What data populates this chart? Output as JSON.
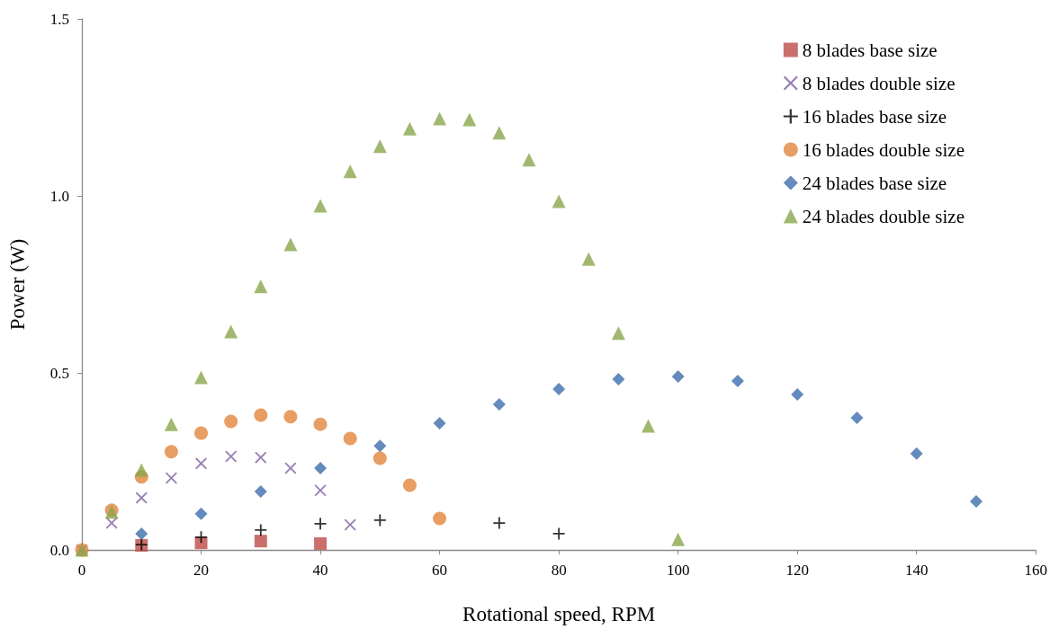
{
  "chart_data": {
    "type": "scatter",
    "xlabel": "Rotational speed, RPM",
    "ylabel": "Power (W)",
    "xlim": [
      0,
      160
    ],
    "xticks": [
      0,
      20,
      40,
      60,
      80,
      100,
      120,
      140,
      160
    ],
    "ylim": [
      0,
      1.5
    ],
    "yticks": [
      {
        "value": 0,
        "label": "0.0"
      },
      {
        "value": 0.5,
        "label": "0.5"
      },
      {
        "value": 1,
        "label": "1.0"
      },
      {
        "value": 1.5,
        "label": "1.5"
      }
    ],
    "legend": "top right",
    "grid": false,
    "series": [
      {
        "name": "8 blades base size",
        "color": "#be4b48",
        "marker": "square",
        "x": [
          10,
          20,
          30,
          40
        ],
        "values": [
          0.013,
          0.02,
          0.025,
          0.018
        ]
      },
      {
        "name": "8 blades double size",
        "color": "#7d60a0",
        "marker": "x",
        "x": [
          0,
          5,
          10,
          15,
          20,
          25,
          30,
          35,
          40,
          45
        ],
        "values": [
          0,
          0.076,
          0.147,
          0.203,
          0.244,
          0.264,
          0.261,
          0.231,
          0.168,
          0.071
        ]
      },
      {
        "name": "16 blades base size",
        "color": "#000000",
        "marker": "cross",
        "x": [
          10,
          20,
          30,
          40,
          50,
          70,
          80
        ],
        "values": [
          0.015,
          0.036,
          0.056,
          0.074,
          0.084,
          0.076,
          0.046
        ]
      },
      {
        "name": "16 blades double size",
        "color": "#e2843c",
        "marker": "circle",
        "x": [
          0,
          5,
          10,
          15,
          20,
          25,
          30,
          35,
          40,
          45,
          50,
          55,
          60
        ],
        "values": [
          0,
          0.112,
          0.206,
          0.277,
          0.33,
          0.363,
          0.381,
          0.376,
          0.355,
          0.315,
          0.259,
          0.183,
          0.089
        ]
      },
      {
        "name": "24 blades base size",
        "color": "#3d6eab",
        "marker": "diamond",
        "x": [
          10,
          20,
          30,
          40,
          50,
          60,
          70,
          80,
          90,
          100,
          110,
          120,
          130,
          140,
          150
        ],
        "values": [
          0.046,
          0.102,
          0.165,
          0.231,
          0.294,
          0.358,
          0.411,
          0.454,
          0.482,
          0.49,
          0.477,
          0.439,
          0.373,
          0.272,
          0.137
        ]
      },
      {
        "name": "24 blades double size",
        "color": "#8aa64c",
        "marker": "triangle",
        "x": [
          0,
          5,
          10,
          15,
          20,
          25,
          30,
          35,
          40,
          45,
          50,
          55,
          60,
          65,
          70,
          75,
          80,
          85,
          90,
          95,
          100
        ],
        "values": [
          0,
          0.107,
          0.226,
          0.355,
          0.487,
          0.617,
          0.744,
          0.863,
          0.972,
          1.069,
          1.14,
          1.19,
          1.218,
          1.216,
          1.178,
          1.102,
          0.985,
          0.822,
          0.612,
          0.35,
          0.03
        ]
      }
    ]
  }
}
